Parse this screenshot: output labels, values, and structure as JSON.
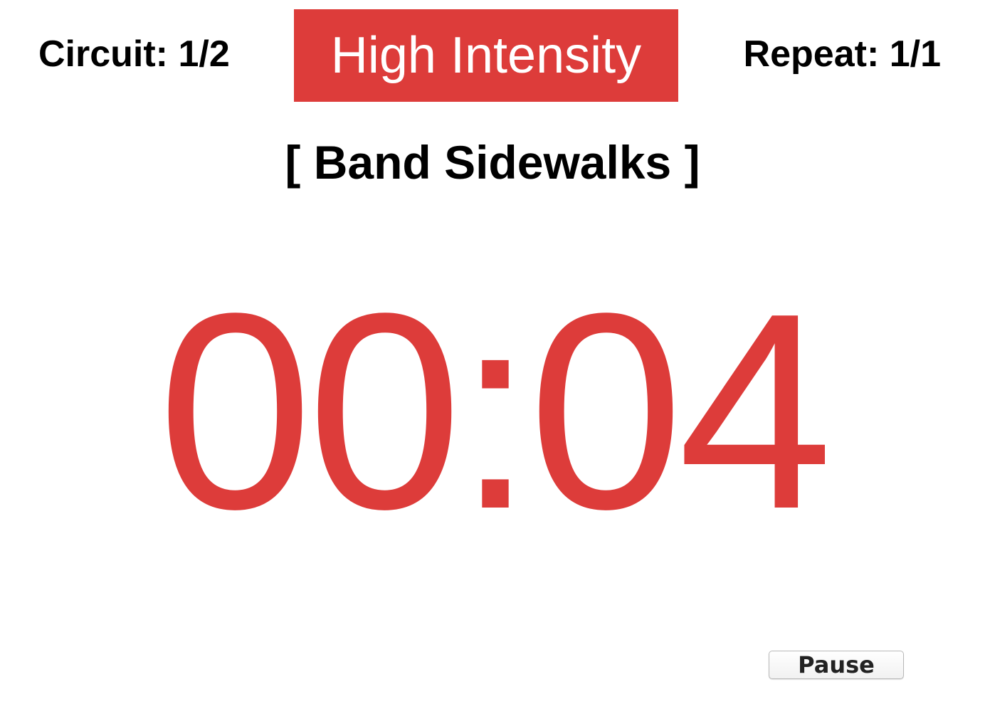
{
  "header": {
    "circuit_label": "Circuit: 1/2",
    "phase_label": "High Intensity",
    "repeat_label": "Repeat: 1/1"
  },
  "exercise": {
    "name": "[ Band Sidewalks ]"
  },
  "timer": {
    "display": "00:04"
  },
  "controls": {
    "pause_label": "Pause"
  },
  "colors": {
    "accent": "#dd3c3a",
    "text": "#000000",
    "background": "#ffffff"
  }
}
